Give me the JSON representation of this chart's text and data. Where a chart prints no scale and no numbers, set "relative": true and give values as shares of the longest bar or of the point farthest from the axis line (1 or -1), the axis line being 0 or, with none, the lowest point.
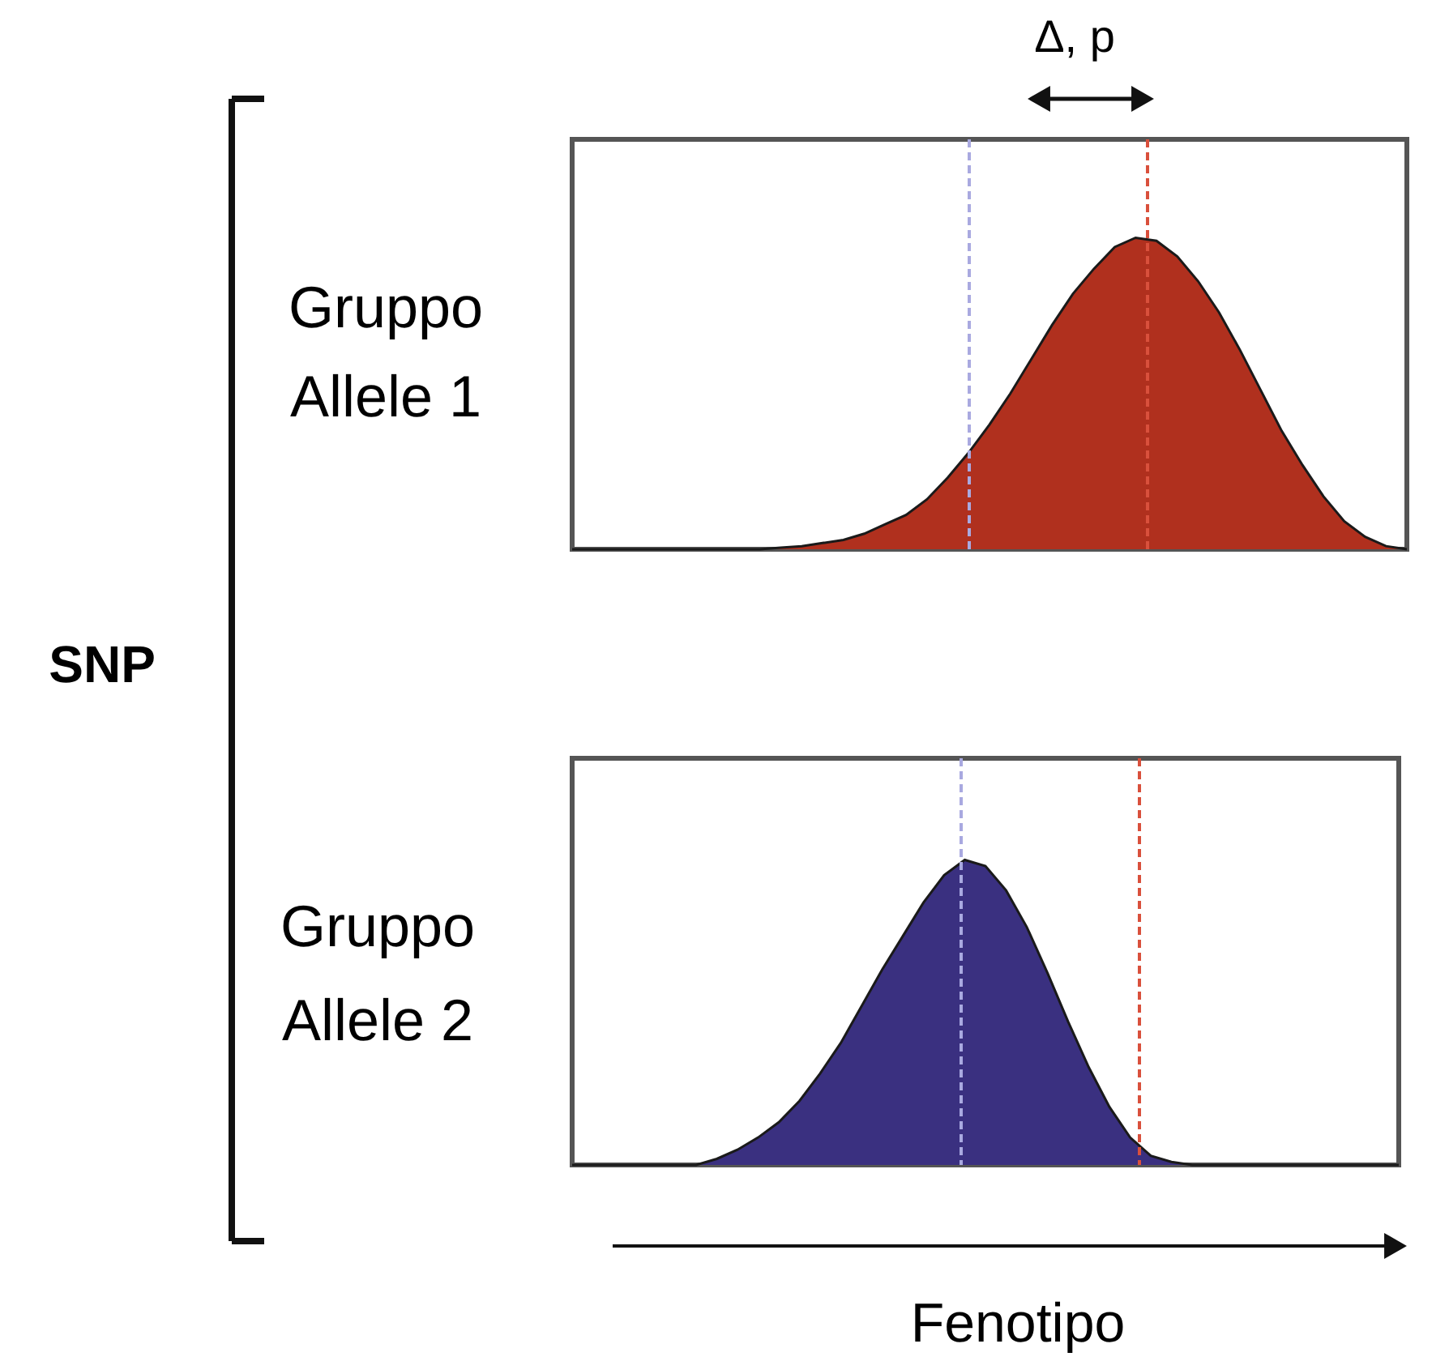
{
  "chart_data": [
    {
      "type": "area",
      "relative": true,
      "ylabel": "Gruppo Allele 1",
      "annotations": [
        "Δ, p",
        "SNP"
      ],
      "categories": [
        null,
        null,
        null,
        null,
        null,
        null,
        null,
        null,
        null,
        null,
        null,
        null,
        null,
        null,
        null,
        null,
        null,
        null,
        null,
        null,
        null,
        null,
        null,
        null,
        null,
        null,
        null,
        null,
        null,
        null,
        null,
        null,
        null,
        null,
        null,
        null,
        null,
        null,
        null,
        null,
        null
      ],
      "series": [
        {
          "color": "#b0301e",
          "values": [
            0,
            0,
            0,
            0,
            0,
            0,
            0,
            0,
            0,
            0,
            0.005,
            0.01,
            0.02,
            0.03,
            0.05,
            0.08,
            0.11,
            0.16,
            0.23,
            0.31,
            0.4,
            0.5,
            0.61,
            0.72,
            0.82,
            0.9,
            0.97,
            1.0,
            0.99,
            0.94,
            0.86,
            0.76,
            0.64,
            0.51,
            0.38,
            0.27,
            0.17,
            0.09,
            0.04,
            0.01,
            0
          ]
        }
      ]
    },
    {
      "type": "area",
      "relative": true,
      "ylabel": "Gruppo Allele 2",
      "xlabel": "Fenotipo",
      "categories": [
        null,
        null,
        null,
        null,
        null,
        null,
        null,
        null,
        null,
        null,
        null,
        null,
        null,
        null,
        null,
        null,
        null,
        null,
        null,
        null,
        null,
        null,
        null,
        null,
        null,
        null,
        null,
        null,
        null,
        null,
        null,
        null,
        null,
        null,
        null,
        null,
        null,
        null,
        null,
        null,
        null
      ],
      "series": [
        {
          "color": "#3a3080",
          "values": [
            0,
            0,
            0,
            0,
            0,
            0,
            0,
            0.02,
            0.05,
            0.09,
            0.14,
            0.21,
            0.3,
            0.4,
            0.52,
            0.64,
            0.75,
            0.86,
            0.95,
            1.0,
            0.98,
            0.9,
            0.78,
            0.63,
            0.47,
            0.32,
            0.19,
            0.09,
            0.03,
            0.01,
            0,
            0,
            0,
            0,
            0,
            0,
            0,
            0,
            0,
            0,
            0
          ]
        }
      ]
    }
  ]
}
